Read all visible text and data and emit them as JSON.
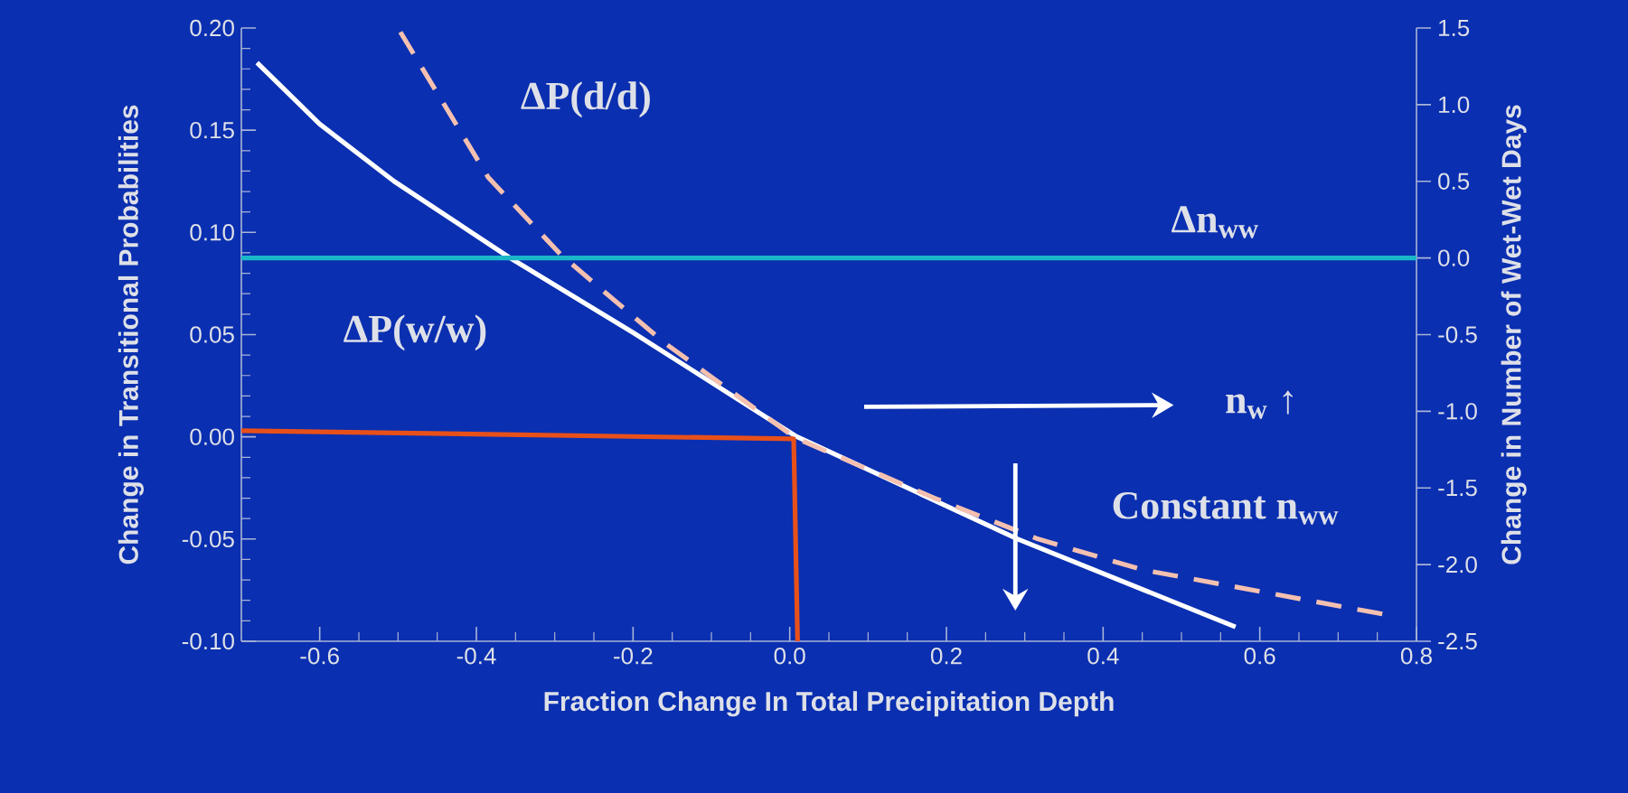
{
  "chart_data": {
    "type": "line",
    "xlabel": "Fraction Change In Total Precipitation Depth",
    "ylabel": "Change in Transitional Probabilities",
    "y2label": "Change in Number of Wet-Wet Days",
    "xlim": [
      -0.7,
      0.8
    ],
    "xticks": [
      {
        "value": -0.6,
        "label": "-0.6"
      },
      {
        "value": -0.4,
        "label": "-0.4"
      },
      {
        "value": -0.2,
        "label": "-0.2"
      },
      {
        "value": 0.0,
        "label": "0.0"
      },
      {
        "value": 0.2,
        "label": "0.2"
      },
      {
        "value": 0.4,
        "label": "0.4"
      },
      {
        "value": 0.6,
        "label": "0.6"
      },
      {
        "value": 0.8,
        "label": "0.8"
      }
    ],
    "ylim": [
      -0.1,
      0.2
    ],
    "yticks": [
      {
        "value": -0.1,
        "label": "-0.10"
      },
      {
        "value": -0.05,
        "label": "-0.05"
      },
      {
        "value": 0.0,
        "label": "0.00"
      },
      {
        "value": 0.05,
        "label": "0.05"
      },
      {
        "value": 0.1,
        "label": "0.10"
      },
      {
        "value": 0.15,
        "label": "0.15"
      },
      {
        "value": 0.2,
        "label": "0.20"
      }
    ],
    "y2lim": [
      -2.5,
      1.5
    ],
    "y2ticks": [
      {
        "value": -2.5,
        "label": "-2.5"
      },
      {
        "value": -2.0,
        "label": "-2.0"
      },
      {
        "value": -1.5,
        "label": "-1.5"
      },
      {
        "value": -1.0,
        "label": "-1.0"
      },
      {
        "value": -0.5,
        "label": "-0.5"
      },
      {
        "value": 0.0,
        "label": "0.0"
      },
      {
        "value": 0.5,
        "label": "0.5"
      },
      {
        "value": 1.0,
        "label": "1.0"
      },
      {
        "value": 1.5,
        "label": "1.5"
      }
    ],
    "series": [
      {
        "name": "ΔP(w/w)",
        "color": "#ffffff",
        "line_style": "solid",
        "x": [
          -0.68,
          -0.6,
          -0.505,
          -0.359,
          -0.2,
          0.007,
          0.291,
          0.569
        ],
        "values": [
          0.183,
          0.153,
          0.125,
          0.088,
          0.051,
          0.0005,
          -0.05,
          -0.093
        ]
      },
      {
        "name": "ΔP(d/d)",
        "color": "#f4c0b0",
        "line_style": "dashed",
        "x": [
          -0.497,
          -0.385,
          -0.292,
          -0.16,
          0.007,
          0.185,
          0.317,
          0.45,
          0.761
        ],
        "values": [
          0.198,
          0.127,
          0.089,
          0.046,
          -0.0005,
          -0.03,
          -0.05,
          -0.065,
          -0.087
        ]
      },
      {
        "name": "Δn$_{ww}$",
        "color": "#1ab8c8",
        "line_style": "solid",
        "axis": "y2",
        "x": [
          -0.7,
          0.8
        ],
        "values": [
          0.0,
          0.0
        ]
      },
      {
        "color": "#e8501a",
        "line_style": "solid",
        "x": [
          -0.7,
          0.005,
          0.01
        ],
        "values": [
          0.003,
          -0.001,
          -0.1
        ]
      }
    ],
    "annotations": [
      "n$_{w}$ ↑",
      "Constant n$_{ww}$"
    ]
  }
}
